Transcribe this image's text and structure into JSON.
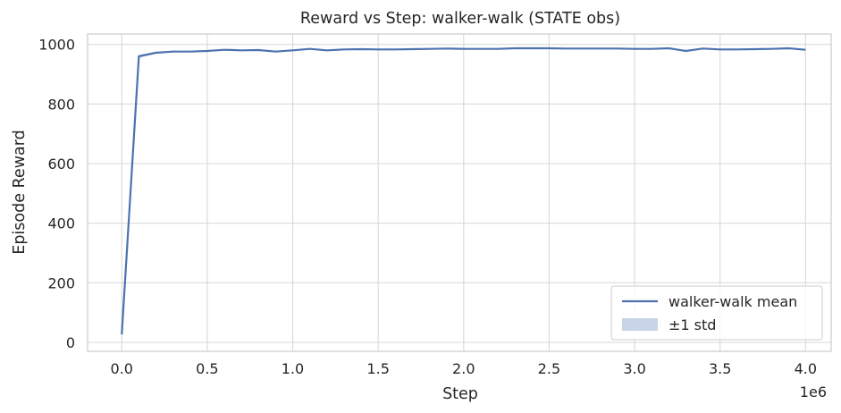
{
  "chart_data": {
    "type": "line",
    "title": "Reward vs Step: walker-walk (STATE obs)",
    "xlabel": "Step",
    "ylabel": "Episode Reward",
    "x_offset_label": "1e6",
    "xlim": [
      -0.2,
      4.15
    ],
    "ylim": [
      -30,
      1035
    ],
    "x_ticks": [
      0.0,
      0.5,
      1.0,
      1.5,
      2.0,
      2.5,
      3.0,
      3.5,
      4.0
    ],
    "x_tick_labels": [
      "0.0",
      "0.5",
      "1.0",
      "1.5",
      "2.0",
      "2.5",
      "3.0",
      "3.5",
      "4.0"
    ],
    "y_ticks": [
      0,
      200,
      400,
      600,
      800,
      1000
    ],
    "y_tick_labels": [
      "0",
      "200",
      "400",
      "600",
      "800",
      "1000"
    ],
    "grid": true,
    "legend_position": "bottom-right",
    "colors": {
      "line": "#4c72b0",
      "band": "#c8d4e8",
      "grid": "#d9d9d9",
      "spine": "#cccccc"
    },
    "series": [
      {
        "name": "walker-walk mean",
        "x": [
          0.0,
          0.1,
          0.2,
          0.3,
          0.4,
          0.5,
          0.6,
          0.7,
          0.8,
          0.9,
          1.0,
          1.1,
          1.2,
          1.3,
          1.4,
          1.5,
          1.6,
          1.7,
          1.8,
          1.9,
          2.0,
          2.1,
          2.2,
          2.3,
          2.4,
          2.5,
          2.6,
          2.7,
          2.8,
          2.9,
          3.0,
          3.1,
          3.2,
          3.3,
          3.4,
          3.5,
          3.6,
          3.7,
          3.8,
          3.9,
          4.0
        ],
        "y": [
          27,
          960,
          972,
          976,
          976,
          978,
          982,
          980,
          981,
          976,
          980,
          985,
          980,
          983,
          984,
          983,
          983,
          984,
          985,
          986,
          985,
          985,
          985,
          987,
          987,
          987,
          986,
          986,
          986,
          986,
          985,
          985,
          987,
          978,
          986,
          983,
          983,
          984,
          985,
          987,
          982
        ]
      },
      {
        "name": "±1 std",
        "type": "band",
        "x": [
          0.0,
          0.1,
          0.2,
          0.3,
          0.4,
          0.5,
          0.6,
          0.7,
          0.8,
          0.9,
          1.0,
          1.1,
          1.2,
          1.3,
          1.4,
          1.5,
          1.6,
          1.7,
          1.8,
          1.9,
          2.0,
          2.1,
          2.2,
          2.3,
          2.4,
          2.5,
          2.6,
          2.7,
          2.8,
          2.9,
          3.0,
          3.1,
          3.2,
          3.3,
          3.4,
          3.5,
          3.6,
          3.7,
          3.8,
          3.9,
          4.0
        ],
        "lower": [
          26,
          955,
          969,
          974,
          974,
          976,
          980,
          978,
          979,
          974,
          978,
          983,
          978,
          981,
          982,
          981,
          981,
          982,
          983,
          984,
          983,
          983,
          983,
          985,
          985,
          985,
          984,
          984,
          984,
          984,
          983,
          983,
          985,
          976,
          984,
          981,
          981,
          982,
          983,
          985,
          980
        ],
        "upper": [
          28,
          965,
          975,
          978,
          978,
          980,
          984,
          982,
          983,
          978,
          982,
          987,
          982,
          985,
          986,
          985,
          985,
          986,
          987,
          988,
          987,
          987,
          987,
          989,
          989,
          989,
          988,
          988,
          988,
          988,
          987,
          987,
          989,
          980,
          988,
          985,
          985,
          986,
          987,
          989,
          984
        ]
      }
    ]
  }
}
